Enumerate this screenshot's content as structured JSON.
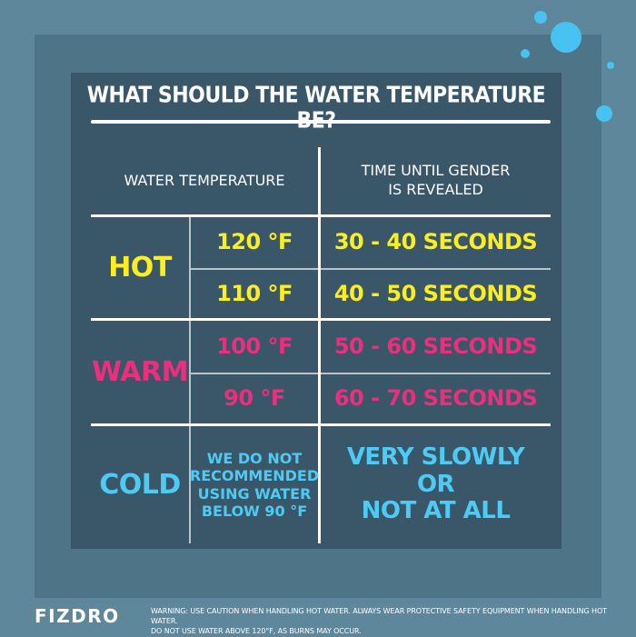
{
  "title": "WHAT SHOULD THE WATER TEMPERATURE BE?",
  "table": {
    "headers": {
      "left": "WATER TEMPERATURE",
      "right_line1": "TIME UNTIL GENDER",
      "right_line2": "IS REVEALED"
    },
    "rows": {
      "hot": {
        "category": "HOT",
        "color": "#fcee21",
        "entries": [
          {
            "temp": "120 °F",
            "time": "30 - 40 SECONDS"
          },
          {
            "temp": "110 °F",
            "time": "40 - 50 SECONDS"
          }
        ]
      },
      "warm": {
        "category": "WARM",
        "color": "#ec2e7d",
        "entries": [
          {
            "temp": "100 °F",
            "time": "50 - 60 SECONDS"
          },
          {
            "temp": "90 °F",
            "time": "60 - 70 SECONDS"
          }
        ]
      },
      "cold": {
        "category": "COLD",
        "color": "#4ecbf5",
        "note_lines": [
          "WE DO NOT",
          "RECOMMENDED",
          "USING WATER",
          "BELOW 90 °F"
        ],
        "time_lines": [
          "VERY SLOWLY",
          "OR",
          "NOT AT ALL"
        ]
      }
    }
  },
  "footer": {
    "logo": "FIZDRO",
    "warning_line1": "WARNING: USE CAUTION WHEN HANDLING HOT WATER. ALWAYS WEAR PROTECTIVE SAFETY EQUIPMENT WHEN HANDLING HOT WATER.",
    "warning_line2": "DO NOT USE WATER ABOVE 120°F, AS BURNS MAY OCCUR."
  },
  "colors": {
    "background": "#5e879b",
    "panel": "#3a5669",
    "bubble": "#48c2f0"
  }
}
